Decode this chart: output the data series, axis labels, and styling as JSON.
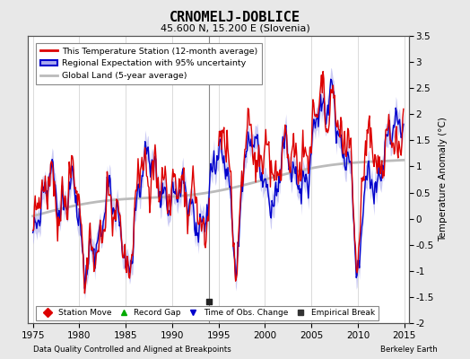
{
  "title": "CRNOMELJ-DOBLICE",
  "subtitle": "45.600 N, 15.200 E (Slovenia)",
  "ylabel": "Temperature Anomaly (°C)",
  "xlabel_left": "Data Quality Controlled and Aligned at Breakpoints",
  "xlabel_right": "Berkeley Earth",
  "xlim": [
    1974.5,
    2015.5
  ],
  "ylim": [
    -2,
    3.5
  ],
  "yticks": [
    -2,
    -1.5,
    -1,
    -0.5,
    0,
    0.5,
    1,
    1.5,
    2,
    2.5,
    3,
    3.5
  ],
  "xticks": [
    1975,
    1980,
    1985,
    1990,
    1995,
    2000,
    2005,
    2010,
    2015
  ],
  "background_color": "#e8e8e8",
  "plot_bg_color": "#ffffff",
  "grid_color": "#cccccc",
  "station_color": "#dd0000",
  "regional_color": "#0000cc",
  "regional_fill_color": "#aaaaee",
  "global_color": "#bbbbbb",
  "vertical_line_x": 1994.0,
  "empirical_break_x": 1994.0,
  "empirical_break_y": -1.58,
  "legend_entries": [
    "This Temperature Station (12-month average)",
    "Regional Expectation with 95% uncertainty",
    "Global Land (5-year average)"
  ],
  "legend2_entries": [
    {
      "label": "Station Move",
      "marker": "D",
      "color": "#dd0000"
    },
    {
      "label": "Record Gap",
      "marker": "^",
      "color": "#00aa00"
    },
    {
      "label": "Time of Obs. Change",
      "marker": "v",
      "color": "#0000cc"
    },
    {
      "label": "Empirical Break",
      "marker": "s",
      "color": "#333333"
    }
  ]
}
